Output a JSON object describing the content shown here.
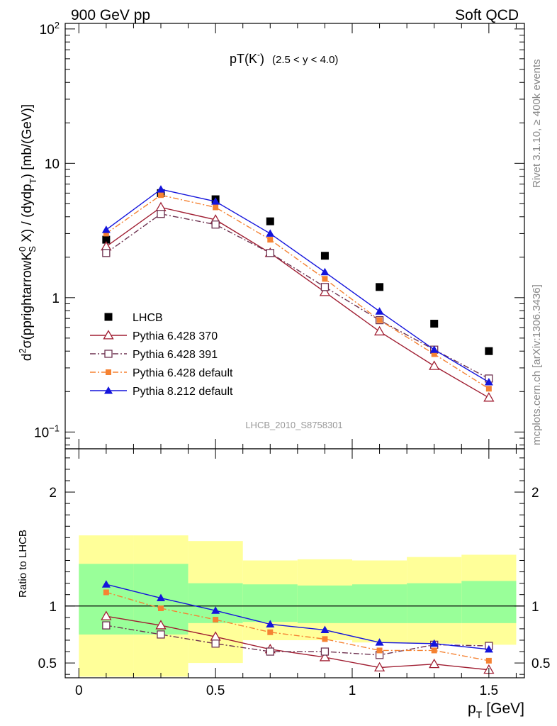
{
  "header": {
    "energy": "900 GeV pp",
    "process": "Soft QCD"
  },
  "side_labels": {
    "rivet": "Rivet 3.1.10, ≥ 400k events",
    "mcplots": "mcplots.cern.ch [arXiv:1306.3436]"
  },
  "chart_data": [
    {
      "type": "scatter",
      "panel": "main",
      "title": "pT(K⁻) (2.5 < y < 4.0)",
      "title_main": "pT(K",
      "title_sup": "-",
      "title_close": ")",
      "title_range": "(2.5 < y < 4.0)",
      "ylabel": "d²σ(pprightarrowK⁰_S X) / (dydp_T) [mb/(GeV)]",
      "ylabel_parts": {
        "d": "d",
        "two": "2",
        "sigma": "σ(pprightarrowK",
        "zero": "0",
        "s": "S",
        "mid": " X) / (dydp",
        "t": "T",
        "end": ") [mb/(GeV)]"
      },
      "yscale": "log",
      "ylim": [
        0.075,
        110
      ],
      "xlim": [
        -0.05,
        1.63
      ],
      "y_ticks": [
        {
          "value": 100,
          "base": "10",
          "exp": "2"
        },
        {
          "value": 10,
          "base": "10",
          "exp": ""
        },
        {
          "value": 1,
          "base": "1",
          "exp": ""
        },
        {
          "value": 0.1,
          "base": "10",
          "exp": "−1"
        }
      ],
      "watermark": "LHCB_2010_S8758301",
      "legend_position": "bottom-left",
      "x": [
        0.1,
        0.3,
        0.5,
        0.7,
        0.9,
        1.1,
        1.3,
        1.5
      ],
      "series": [
        {
          "name": "LHCB",
          "color": "#000000",
          "marker": "filled-square",
          "line": "none",
          "values": [
            2.7,
            6.0,
            5.4,
            3.7,
            2.05,
            1.2,
            0.64,
            0.4
          ]
        },
        {
          "name": "Pythia 6.428 370",
          "color": "#a01e32",
          "marker": "open-triangle",
          "line": "solid",
          "values": [
            2.4,
            4.7,
            3.8,
            2.15,
            1.1,
            0.56,
            0.31,
            0.18
          ]
        },
        {
          "name": "Pythia 6.428 391",
          "color": "#6e3250",
          "marker": "open-square",
          "line": "dash-dot",
          "values": [
            2.15,
            4.2,
            3.5,
            2.15,
            1.2,
            0.68,
            0.41,
            0.25
          ]
        },
        {
          "name": "Pythia 6.428 default",
          "color": "#f58232",
          "marker": "filled-small-square",
          "line": "dash-dot",
          "values": [
            3.0,
            5.8,
            4.7,
            2.7,
            1.38,
            0.68,
            0.38,
            0.21
          ]
        },
        {
          "name": "Pythia 8.212 default",
          "color": "#1414dc",
          "marker": "filled-triangle",
          "line": "solid",
          "values": [
            3.2,
            6.4,
            5.2,
            3.0,
            1.55,
            0.79,
            0.41,
            0.235
          ]
        }
      ]
    },
    {
      "type": "line",
      "panel": "ratio",
      "ylabel": "Ratio to LHCB",
      "xlabel_base": "p",
      "xlabel_sub": "T",
      "xlabel_unit": "[GeV]",
      "ylim": [
        0.37,
        2.38
      ],
      "xlim": [
        -0.05,
        1.63
      ],
      "x_ticks": [
        {
          "value": 0,
          "label": "0"
        },
        {
          "value": 0.5,
          "label": "0.5"
        },
        {
          "value": 1,
          "label": "1"
        },
        {
          "value": 1.5,
          "label": "1.5"
        }
      ],
      "y_ticks": [
        {
          "value": 2,
          "label": "2"
        },
        {
          "value": 1,
          "label": "1"
        },
        {
          "value": 0.5,
          "label": "0.5"
        }
      ],
      "reference_line": 1,
      "bins": [
        [
          0.0,
          0.2
        ],
        [
          0.2,
          0.4
        ],
        [
          0.4,
          0.6
        ],
        [
          0.6,
          0.8
        ],
        [
          0.8,
          1.0
        ],
        [
          1.0,
          1.2
        ],
        [
          1.2,
          1.4
        ],
        [
          1.4,
          1.6
        ]
      ],
      "band_outer": {
        "name": "total uncertainty",
        "color": "#ffff99",
        "low": [
          0.38,
          0.38,
          0.5,
          0.7,
          0.7,
          0.68,
          0.67,
          0.66
        ],
        "high": [
          1.62,
          1.62,
          1.57,
          1.4,
          1.41,
          1.4,
          1.43,
          1.45
        ]
      },
      "band_inner": {
        "name": "statistical uncertainty",
        "color": "#99ff99",
        "low": [
          0.75,
          0.75,
          0.85,
          0.86,
          0.85,
          0.85,
          0.85,
          0.85
        ],
        "high": [
          1.37,
          1.37,
          1.2,
          1.19,
          1.18,
          1.19,
          1.2,
          1.22
        ]
      },
      "x": [
        0.1,
        0.3,
        0.5,
        0.7,
        0.9,
        1.1,
        1.3,
        1.5
      ],
      "series": [
        {
          "name": "Pythia 6.428 370",
          "color": "#a01e32",
          "marker": "open-triangle",
          "line": "solid",
          "values": [
            0.91,
            0.83,
            0.73,
            0.62,
            0.55,
            0.46,
            0.49,
            0.44
          ]
        },
        {
          "name": "Pythia 6.428 391",
          "color": "#6e3250",
          "marker": "open-square",
          "line": "dash-dot",
          "values": [
            0.83,
            0.75,
            0.67,
            0.6,
            0.6,
            0.57,
            0.66,
            0.65
          ]
        },
        {
          "name": "Pythia 6.428 default",
          "color": "#f58232",
          "marker": "filled-small-square",
          "line": "dash-dot",
          "values": [
            1.12,
            0.98,
            0.88,
            0.77,
            0.71,
            0.61,
            0.61,
            0.52
          ]
        },
        {
          "name": "Pythia 8.212 default",
          "color": "#1414dc",
          "marker": "filled-triangle",
          "line": "solid",
          "values": [
            1.19,
            1.07,
            0.96,
            0.84,
            0.79,
            0.68,
            0.67,
            0.62
          ]
        }
      ]
    }
  ]
}
